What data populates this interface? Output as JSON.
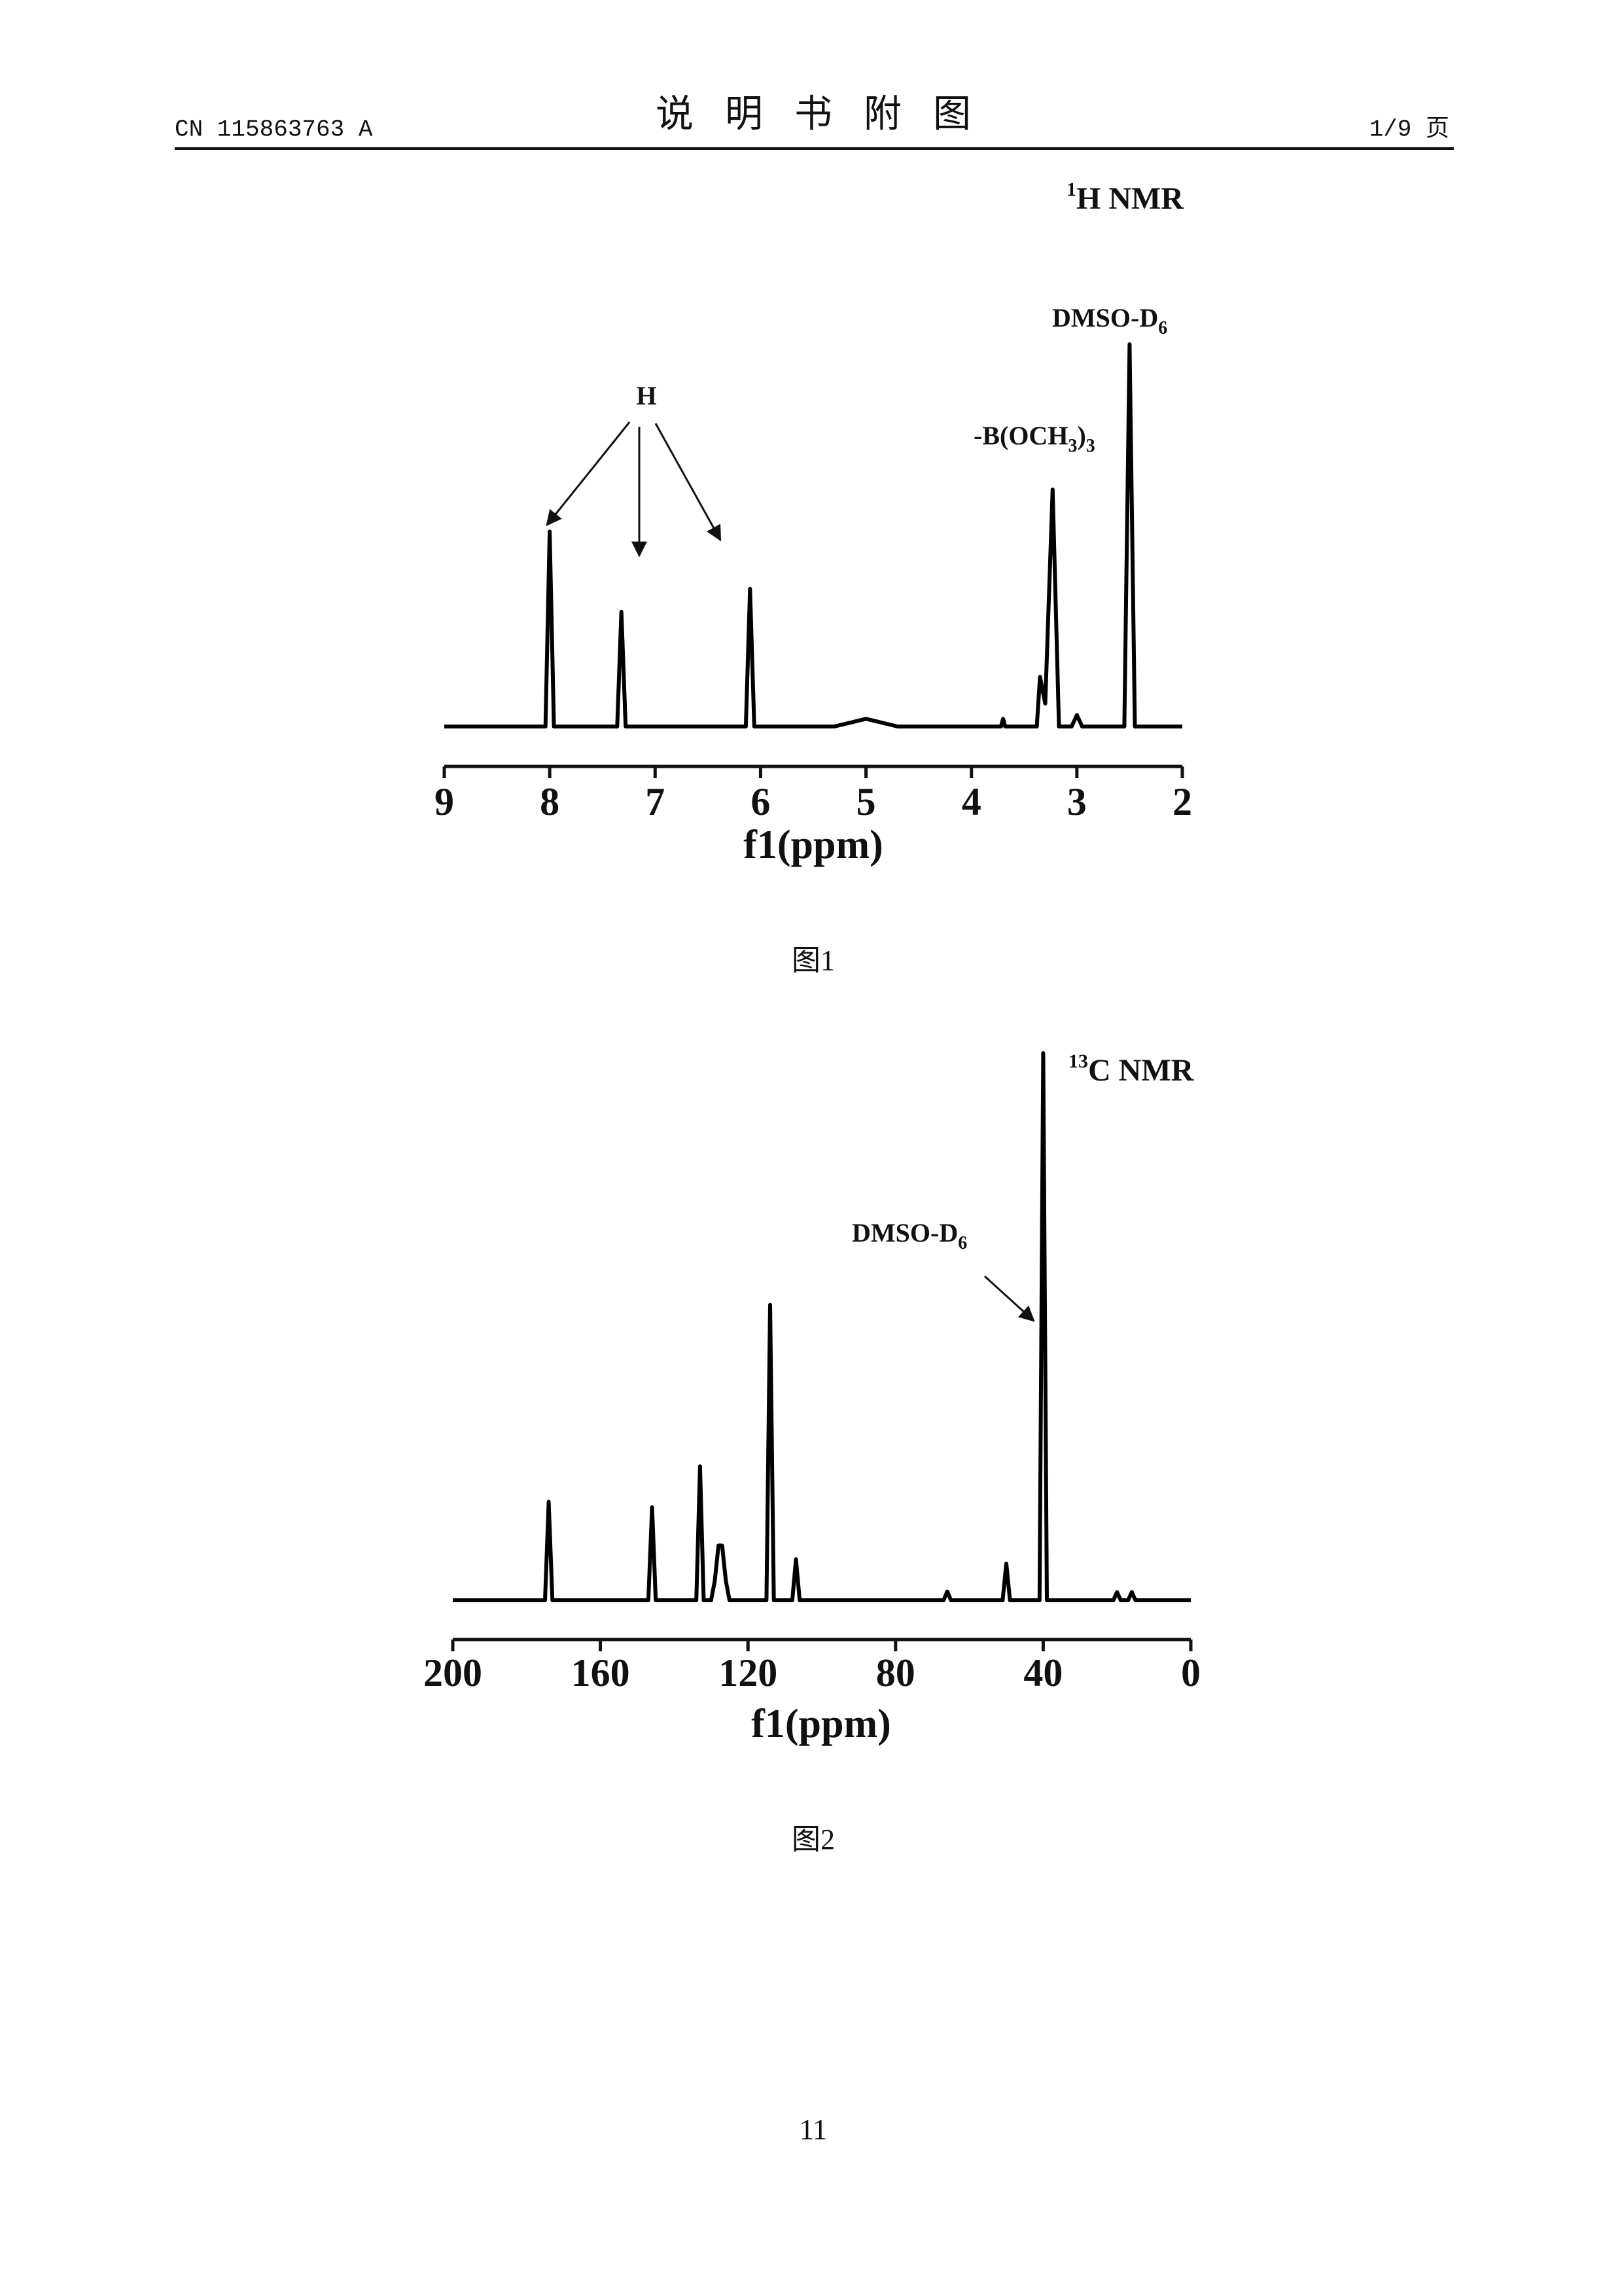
{
  "header": {
    "left": "CN 115863763 A",
    "title": "说明书附图",
    "right": "1/9 页"
  },
  "chart_data": [
    {
      "type": "line",
      "title_sup": "1",
      "title": "H NMR",
      "x_label": "f1(ppm)",
      "caption": "图1",
      "xlim": [
        9,
        2
      ],
      "xticks": [
        9,
        8,
        7,
        6,
        5,
        4,
        3,
        2
      ],
      "ylim": [
        0,
        100
      ],
      "color": "#000000",
      "x": [
        9.0,
        8.1,
        8.04,
        8.0,
        7.96,
        7.36,
        7.32,
        7.28,
        6.14,
        6.1,
        6.06,
        5.3,
        5.0,
        4.7,
        3.72,
        3.7,
        3.68,
        3.38,
        3.35,
        3.3,
        3.23,
        3.17,
        3.05,
        3.0,
        2.95,
        2.55,
        2.5,
        2.45,
        2.0
      ],
      "values": [
        0,
        0,
        0,
        51,
        0,
        0,
        30,
        0,
        0,
        36,
        0,
        0,
        2,
        0,
        0,
        2,
        0,
        0,
        13,
        6,
        62,
        0,
        0,
        3,
        0,
        0,
        100,
        0,
        0
      ],
      "annotations": {
        "h": "H",
        "dmso": [
          "DMSO-D",
          "6"
        ],
        "boch": [
          "-B(OCH",
          "3",
          ")",
          "3"
        ]
      }
    },
    {
      "type": "line",
      "title_sup": "13",
      "title": "C NMR",
      "x_label": "f1(ppm)",
      "caption": "图2",
      "xlim": [
        200,
        0
      ],
      "xticks": [
        200,
        160,
        120,
        80,
        40,
        0
      ],
      "ylim": [
        0,
        100
      ],
      "color": "#000000",
      "x": [
        200,
        175,
        174,
        173,
        147,
        146,
        145,
        134,
        133,
        132,
        130,
        129,
        128,
        127,
        126,
        125,
        115,
        114,
        113,
        108,
        107,
        106,
        67,
        66,
        65,
        51,
        50,
        49,
        41,
        40,
        39,
        21,
        20,
        19,
        17,
        16,
        15,
        0
      ],
      "values": [
        0,
        0,
        18,
        0,
        0,
        17,
        0,
        0,
        24.5,
        0,
        0,
        3.5,
        10,
        10,
        3.5,
        0,
        0,
        54,
        0,
        0,
        7.5,
        0,
        0,
        1.6,
        0,
        0,
        6.7,
        0,
        0,
        100,
        0,
        0,
        1.5,
        0,
        0,
        1.5,
        0,
        0
      ],
      "annotations": {
        "dmso": [
          "DMSO-D",
          "6"
        ]
      }
    }
  ],
  "footer": {
    "page": "11"
  }
}
